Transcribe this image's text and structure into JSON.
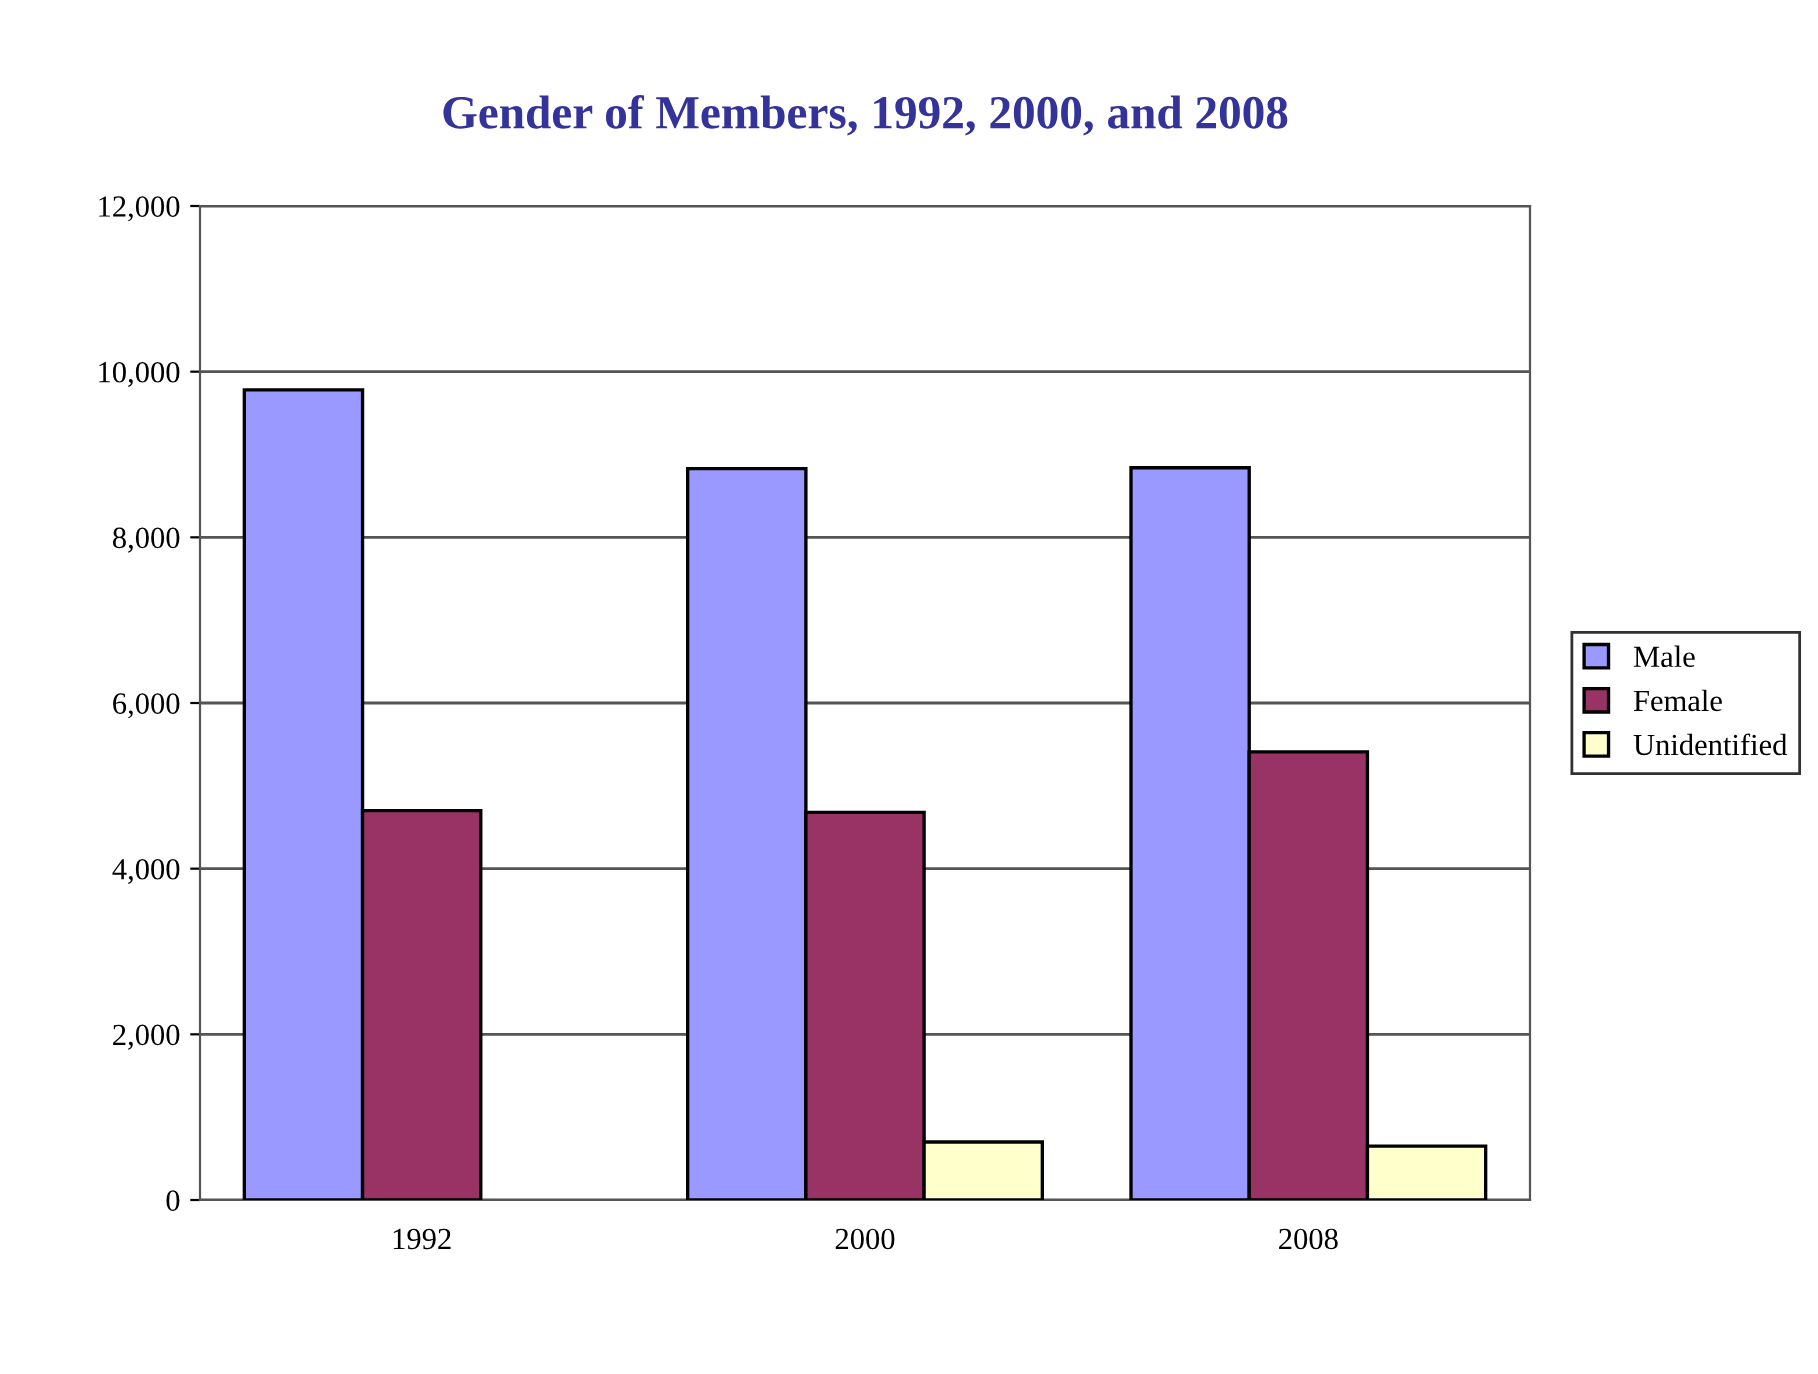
{
  "chart_data": {
    "type": "bar",
    "title": "Gender of Members, 1992, 2000, and 2008",
    "categories": [
      "1992",
      "2000",
      "2008"
    ],
    "series": [
      {
        "name": "Male",
        "color": "#9999ff",
        "values": [
          9780,
          8830,
          8840
        ]
      },
      {
        "name": "Female",
        "color": "#993366",
        "values": [
          4700,
          4680,
          5410
        ]
      },
      {
        "name": "Unidentified",
        "color": "#ffffcc",
        "values": [
          null,
          700,
          650
        ]
      }
    ],
    "ylim": [
      0,
      12000
    ],
    "yticks": [
      {
        "value": 0,
        "label": "0"
      },
      {
        "value": 2000,
        "label": "2,000"
      },
      {
        "value": 4000,
        "label": "4,000"
      },
      {
        "value": 6000,
        "label": "6,000"
      },
      {
        "value": 8000,
        "label": "8,000"
      },
      {
        "value": 10000,
        "label": "10,000"
      },
      {
        "value": 12000,
        "label": "12,000"
      }
    ],
    "grid": "y",
    "legend": "right"
  }
}
